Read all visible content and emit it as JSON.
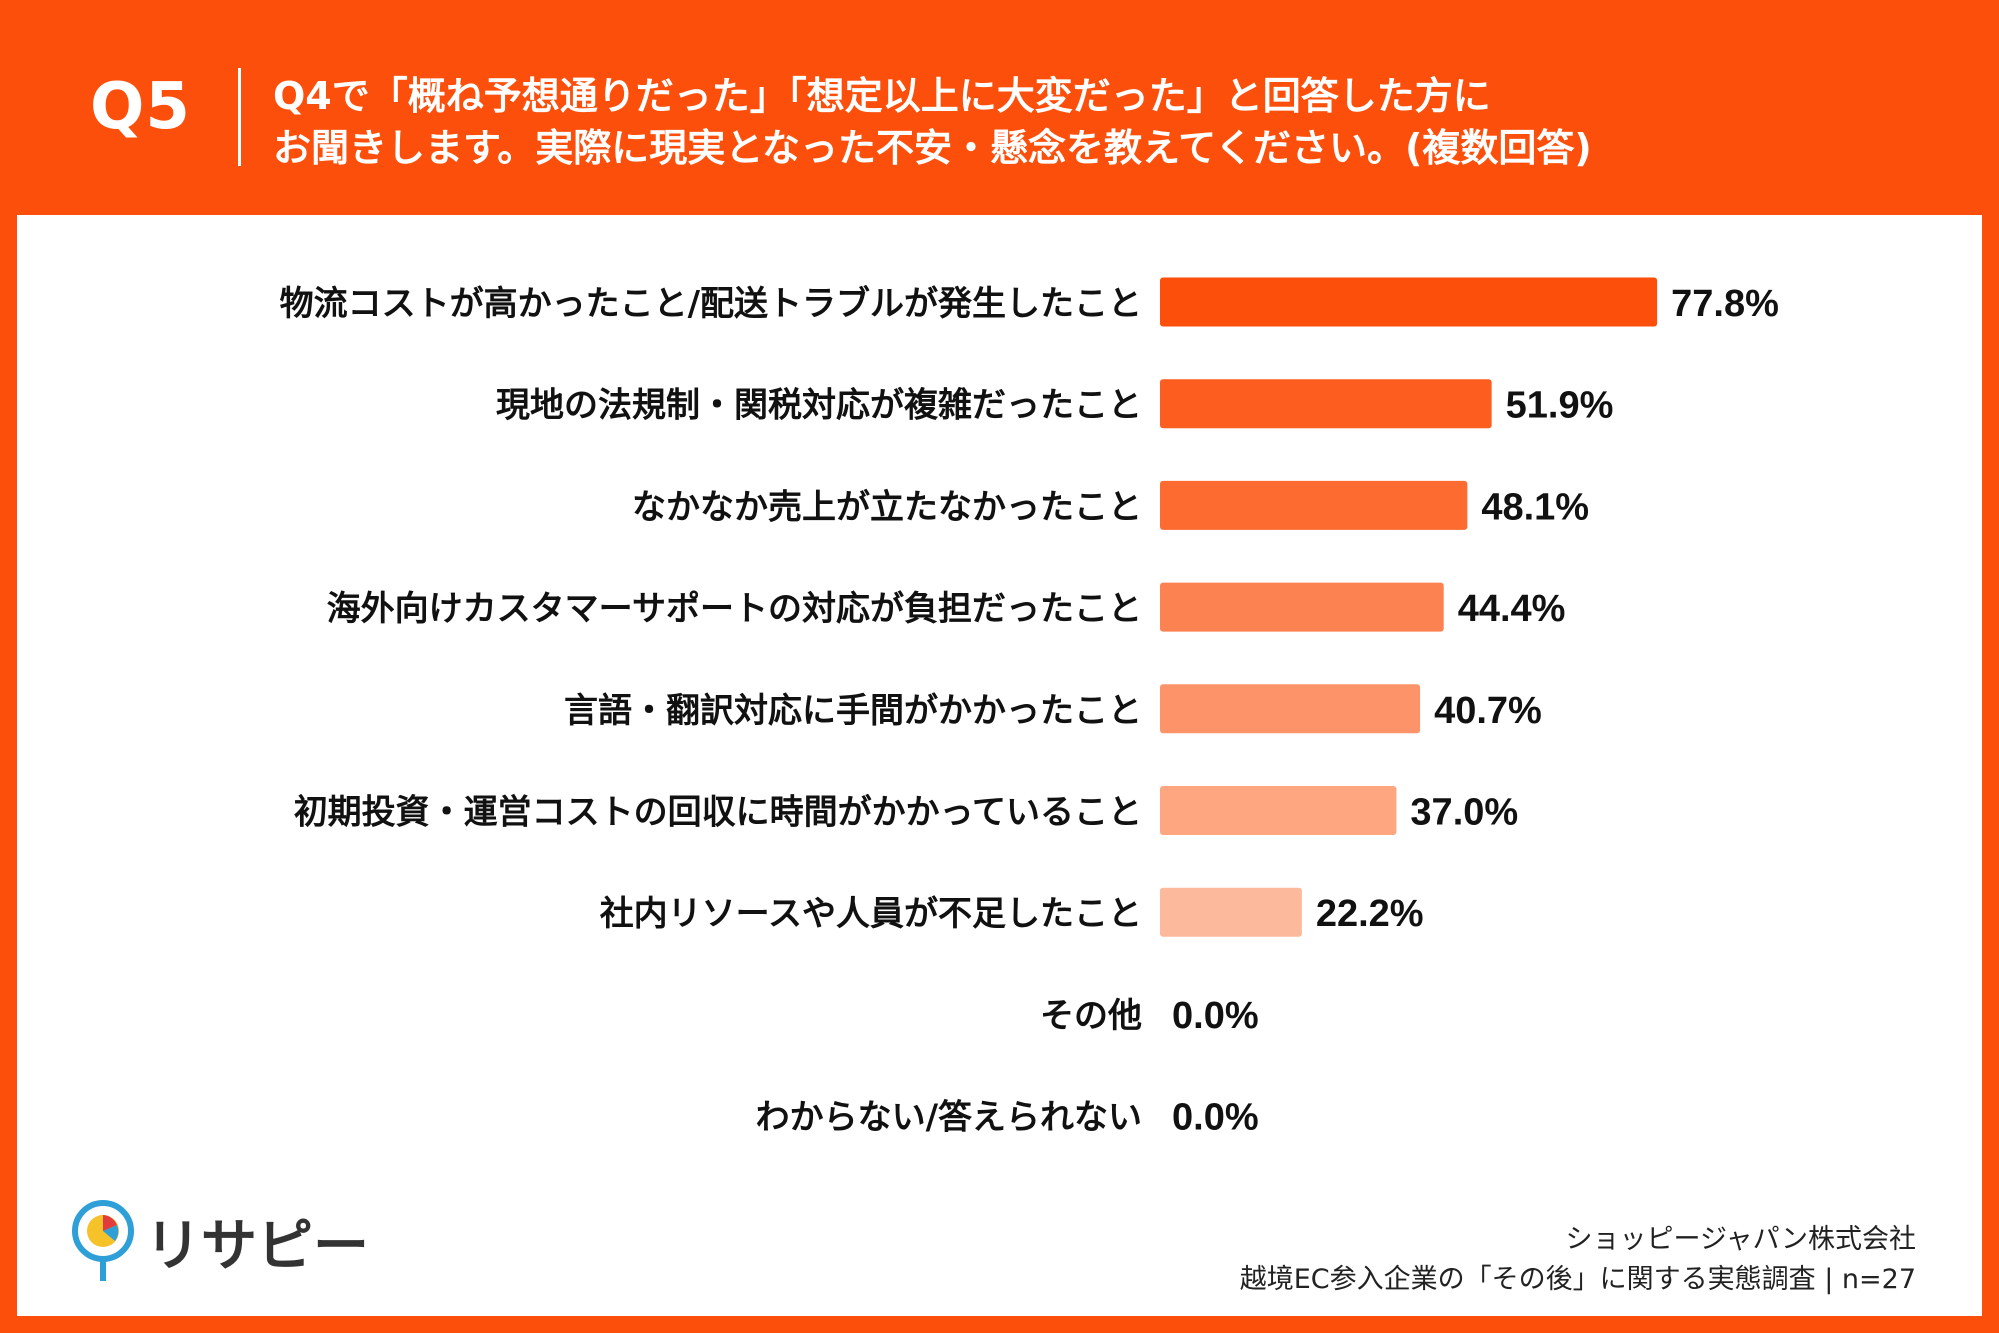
{
  "header": {
    "q_label": "Q5",
    "question_line1": "Q4で「概ね予想通りだった」「想定以上に大変だった」と回答した方に",
    "question_line2": "お聞きします。実際に現実となった不安・懸念を教えてください。(複数回答)"
  },
  "chart_data": {
    "type": "bar",
    "orientation": "horizontal",
    "categories": [
      "物流コストが高かったこと/配送トラブルが発生したこと",
      "現地の法規制・関税対応が複雑だったこと",
      "なかなか売上が立たなかったこと",
      "海外向けカスタマーサポートの対応が負担だったこと",
      "言語・翻訳対応に手間がかかったこと",
      "初期投資・運営コストの回収に時間がかかっていること",
      "社内リソースや人員が不足したこと",
      "その他",
      "わからない/答えられない"
    ],
    "values": [
      77.8,
      51.9,
      48.1,
      44.4,
      40.7,
      37.0,
      22.2,
      0.0,
      0.0
    ],
    "value_labels": [
      "77.8%",
      "51.9%",
      "48.1%",
      "44.4%",
      "40.7%",
      "37.0%",
      "22.2%",
      "0.0%",
      "0.0%"
    ],
    "bar_colors": [
      "#fd4f0c",
      "#fd5d1e",
      "#fd6b30",
      "#fd8252",
      "#fd9369",
      "#fda680",
      "#fdb99b",
      "#fdc8ae",
      "#fdd4bf"
    ],
    "xlim": [
      0,
      100
    ],
    "grid": false,
    "legend": "none"
  },
  "footer": {
    "company": "ショッピージャパン株式会社",
    "survey": "越境EC参入企業の「その後」に関する実態調査 | n=27"
  },
  "logo": {
    "text": "リサピー",
    "icon": "risapy-pin-icon",
    "colors": [
      "#2f9fd8",
      "#f5c22a",
      "#e23c3c"
    ]
  }
}
